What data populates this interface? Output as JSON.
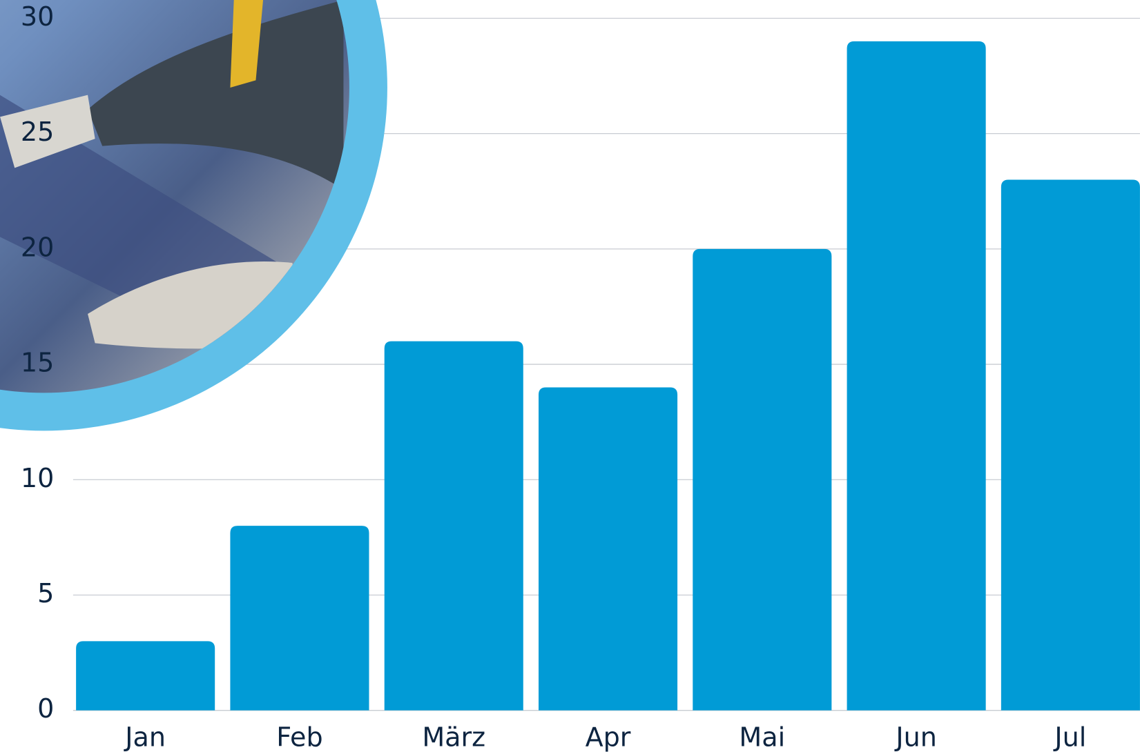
{
  "chart_data": {
    "type": "bar",
    "categories": [
      "Jan",
      "Feb",
      "März",
      "Apr",
      "Mai",
      "Jun",
      "Jul"
    ],
    "values": [
      3,
      8,
      16,
      14,
      20,
      29,
      23
    ],
    "color": "#019bd6",
    "ylim": [
      0,
      30
    ],
    "yticks": [
      0,
      5,
      10,
      15,
      20,
      25,
      30
    ],
    "grid": true
  }
}
